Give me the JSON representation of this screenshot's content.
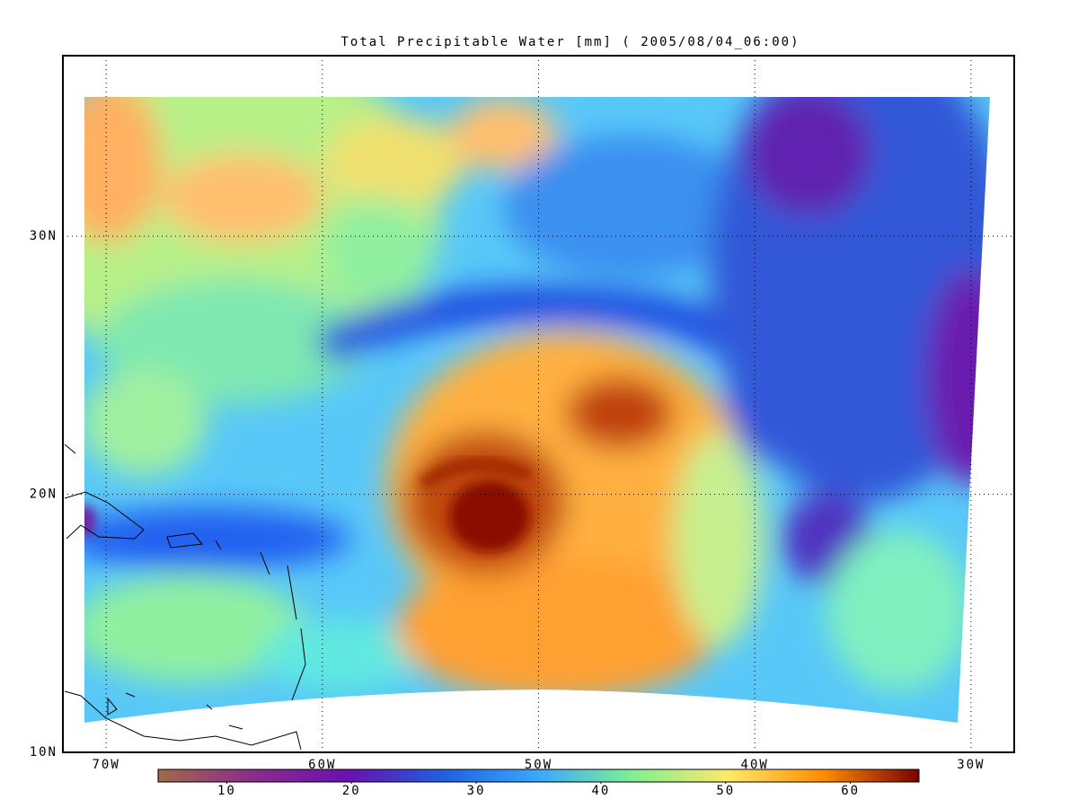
{
  "title": "Total Precipitable Water [mm]  ( 2005/08/04_06:00)",
  "map": {
    "lon_range": [
      -72,
      -28
    ],
    "lat_range": [
      10,
      37
    ],
    "lon_ticks": [
      {
        "value": -70,
        "label": "70W"
      },
      {
        "value": -60,
        "label": "60W"
      },
      {
        "value": -50,
        "label": "50W"
      },
      {
        "value": -40,
        "label": "40W"
      },
      {
        "value": -30,
        "label": "30W"
      }
    ],
    "lat_ticks": [
      {
        "value": 10,
        "label": "10N"
      },
      {
        "value": 20,
        "label": "20N"
      },
      {
        "value": 30,
        "label": "30N"
      }
    ]
  },
  "colorbar": {
    "range": [
      4.5,
      65.5
    ],
    "ticks": [
      10,
      20,
      30,
      40,
      50,
      60
    ],
    "colors": [
      "#a06a4a",
      "#8a2c8c",
      "#6a10b0",
      "#1f5fe0",
      "#3aa8ff",
      "#80f090",
      "#ffe868",
      "#ff8c00",
      "#7a0000"
    ]
  }
}
